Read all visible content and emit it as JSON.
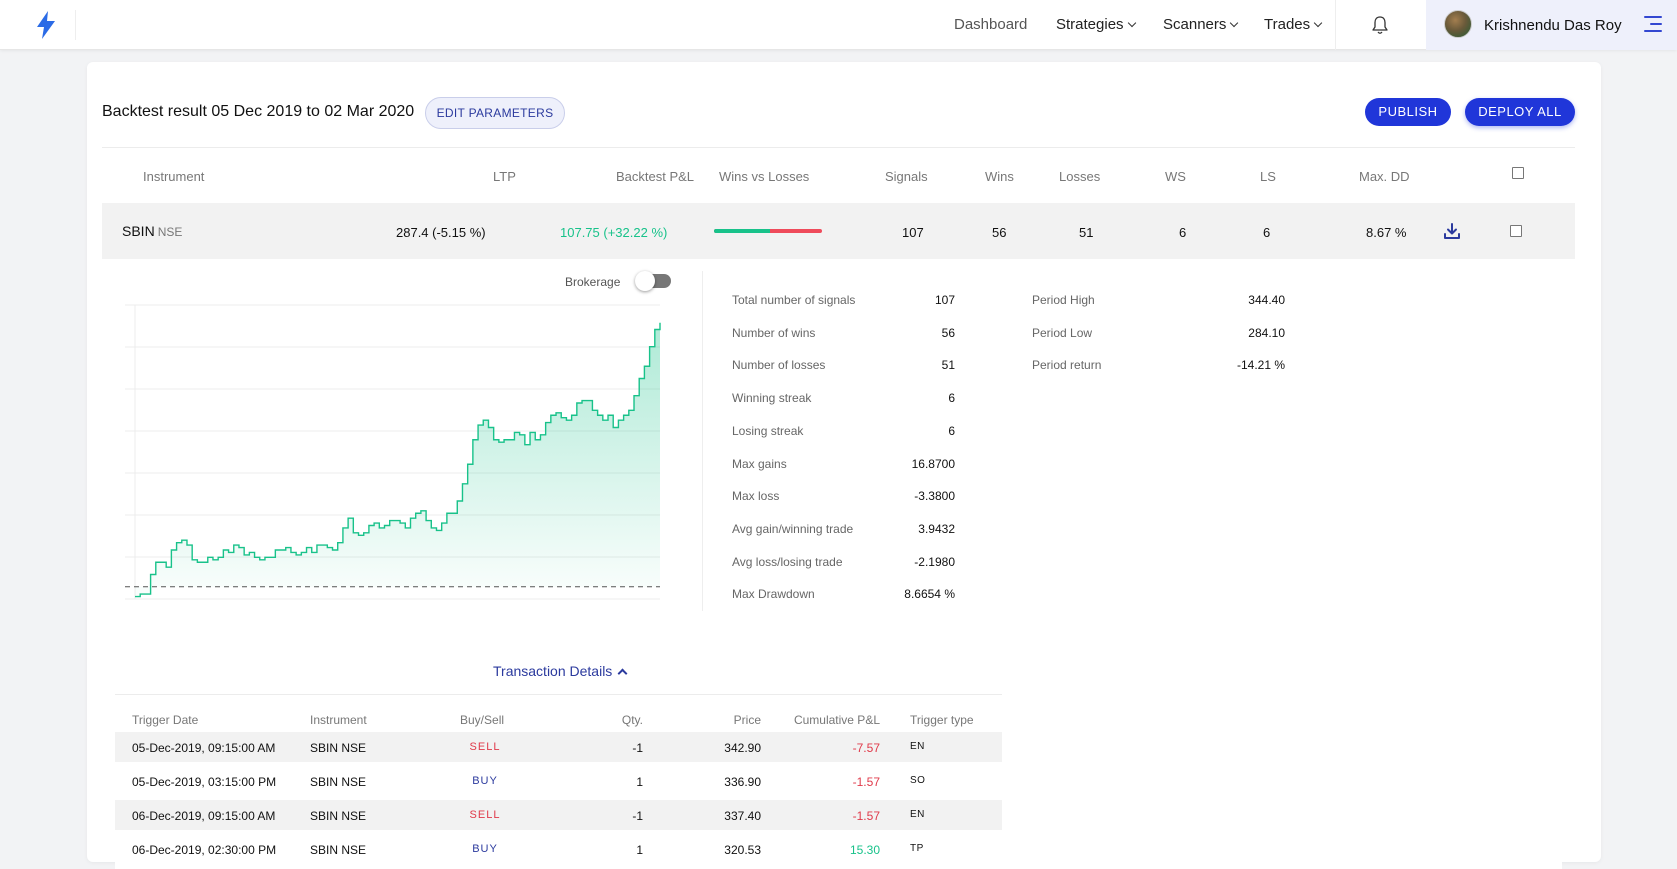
{
  "nav": {
    "links": [
      "Dashboard",
      "Strategies",
      "Scanners",
      "Trades"
    ],
    "user_name": "Krishnendu Das Roy"
  },
  "header": {
    "title": "Backtest result 05 Dec 2019 to 02 Mar 2020",
    "edit_label": "EDIT PARAMETERS",
    "publish_label": "PUBLISH",
    "deploy_label": "DEPLOY ALL"
  },
  "table": {
    "columns": [
      "Instrument",
      "LTP",
      "Backtest P&L",
      "Wins vs Losses",
      "Signals",
      "Wins",
      "Losses",
      "WS",
      "LS",
      "Max. DD"
    ],
    "row": {
      "instrument": "SBIN",
      "exchange": "NSE",
      "ltp": "287.4 (-5.15 %)",
      "pnl": "107.75 (+32.22 %)",
      "signals": "107",
      "wins": "56",
      "losses": "51",
      "ws": "6",
      "ls": "6",
      "max_dd": "8.67 %",
      "win_fraction": 0.52
    }
  },
  "detail": {
    "brokerage_label": "Brokerage",
    "brokerage_on": false,
    "stats": [
      {
        "label": "Total number of signals",
        "value": "107"
      },
      {
        "label": "Number of wins",
        "value": "56"
      },
      {
        "label": "Number of losses",
        "value": "51"
      },
      {
        "label": "Winning streak",
        "value": "6"
      },
      {
        "label": "Losing streak",
        "value": "6"
      },
      {
        "label": "Max gains",
        "value": "16.8700"
      },
      {
        "label": "Max loss",
        "value": "-3.3800"
      },
      {
        "label": "Avg gain/winning trade",
        "value": "3.9432"
      },
      {
        "label": "Avg loss/losing trade",
        "value": "-2.1980"
      },
      {
        "label": "Max Drawdown",
        "value": "8.6654 %"
      }
    ],
    "period": [
      {
        "label": "Period High",
        "value": "344.40"
      },
      {
        "label": "Period Low",
        "value": "284.10"
      },
      {
        "label": "Period return",
        "value": "-14.21 %"
      }
    ],
    "transaction_label": "Transaction Details"
  },
  "transactions": {
    "columns": [
      "Trigger Date",
      "Instrument",
      "Buy/Sell",
      "Qty.",
      "Price",
      "Cumulative P&L",
      "Trigger type"
    ],
    "rows": [
      {
        "date": "05-Dec-2019, 09:15:00 AM",
        "instrument": "SBIN NSE",
        "side": "SELL",
        "qty": "-1",
        "price": "342.90",
        "cum_pnl": "-7.57",
        "trigger": "EN"
      },
      {
        "date": "05-Dec-2019, 03:15:00 PM",
        "instrument": "SBIN NSE",
        "side": "BUY",
        "qty": "1",
        "price": "336.90",
        "cum_pnl": "-1.57",
        "trigger": "SO"
      },
      {
        "date": "06-Dec-2019, 09:15:00 AM",
        "instrument": "SBIN NSE",
        "side": "SELL",
        "qty": "-1",
        "price": "337.40",
        "cum_pnl": "-1.57",
        "trigger": "EN"
      },
      {
        "date": "06-Dec-2019, 02:30:00 PM",
        "instrument": "SBIN NSE",
        "side": "BUY",
        "qty": "1",
        "price": "320.53",
        "cum_pnl": "15.30",
        "trigger": "TP"
      }
    ]
  },
  "colors": {
    "accent": "#2036d9",
    "positive": "#18c28a",
    "negative": "#e03a4a"
  },
  "chart_data": {
    "type": "area",
    "title": "",
    "xlabel": "",
    "ylabel": "",
    "baseline": 0,
    "ylim": [
      -5,
      115
    ],
    "grid": true,
    "values": [
      -4,
      -3,
      -3,
      5,
      10,
      10,
      8,
      15,
      18,
      19,
      17,
      11,
      10,
      10,
      12,
      11,
      12,
      15,
      14,
      17,
      16,
      13,
      14,
      12,
      11,
      12,
      12,
      15,
      15,
      16,
      14,
      13,
      14,
      16,
      14,
      17,
      17,
      16,
      15,
      18,
      24,
      28,
      22,
      21,
      22,
      25,
      26,
      24,
      25,
      27,
      27,
      26,
      24,
      28,
      30,
      31,
      27,
      24,
      23,
      26,
      30,
      30,
      35,
      42,
      50,
      60,
      66,
      68,
      65,
      60,
      59,
      60,
      60,
      63,
      62,
      58,
      63,
      60,
      62,
      67,
      70,
      71,
      69,
      68,
      70,
      75,
      76,
      76,
      72,
      70,
      68,
      70,
      65,
      68,
      70,
      72,
      78,
      85,
      90,
      98,
      105,
      107.75
    ]
  }
}
